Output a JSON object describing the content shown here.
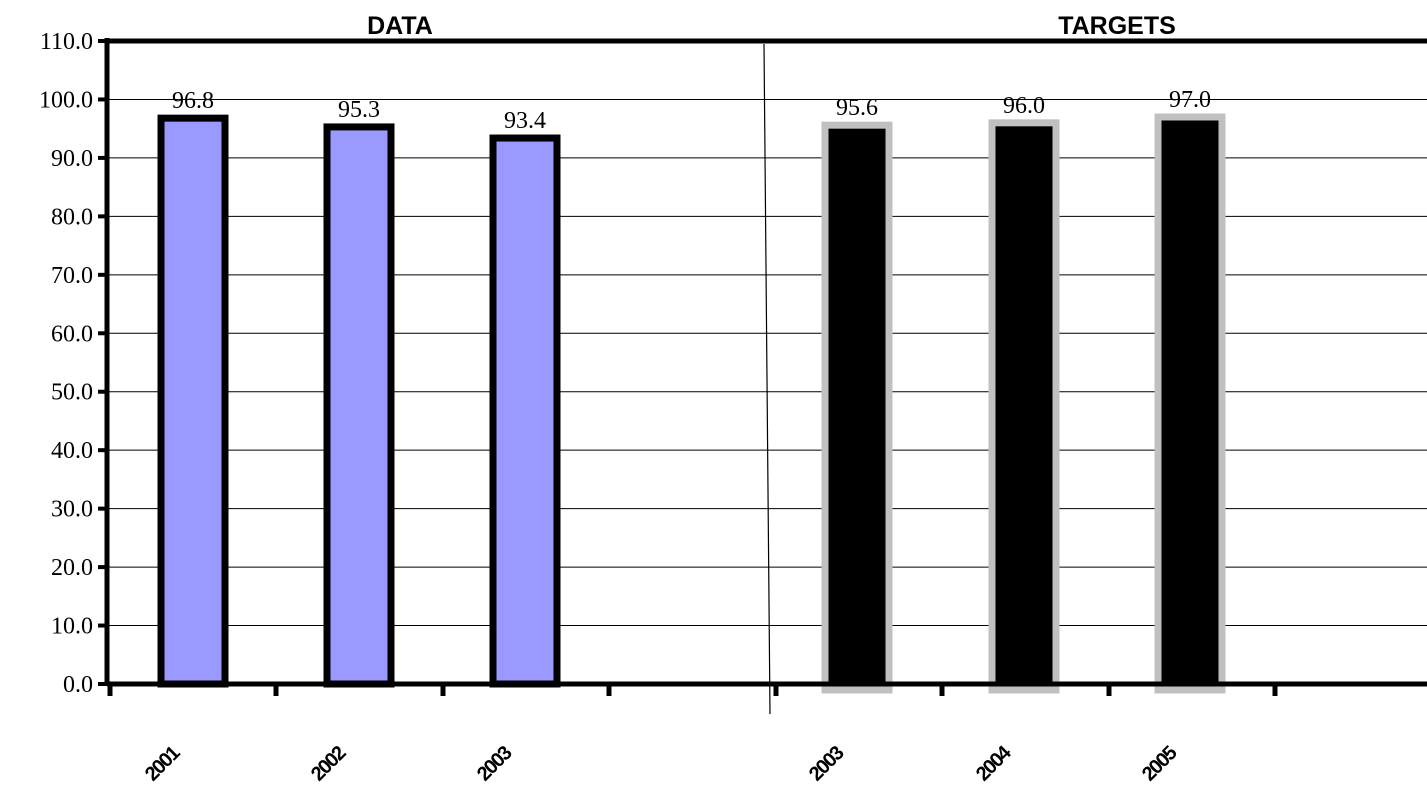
{
  "chart_data": {
    "type": "bar",
    "sections": [
      {
        "title": "DATA",
        "categories": [
          "2001",
          "2002",
          "2003",
          ""
        ],
        "values": [
          96.8,
          95.3,
          93.4,
          null
        ],
        "value_labels": [
          "96.8",
          "95.3",
          "93.4",
          ""
        ],
        "fill": "#9999ff",
        "stroke": "#000000"
      },
      {
        "title": "TARGETS",
        "categories": [
          "2003",
          "2004",
          "2005",
          ""
        ],
        "values": [
          95.6,
          96.0,
          97.0,
          null
        ],
        "value_labels": [
          "95.6",
          "96.0",
          "97.0",
          ""
        ],
        "fill": "#000000",
        "stroke": "#c0c0c0"
      }
    ],
    "yticks": [
      "0.0",
      "10.0",
      "20.0",
      "30.0",
      "40.0",
      "50.0",
      "60.0",
      "70.0",
      "80.0",
      "90.0",
      "100.0",
      "110.0"
    ],
    "ylim": [
      0,
      110
    ],
    "grid": true,
    "legend": "none"
  }
}
